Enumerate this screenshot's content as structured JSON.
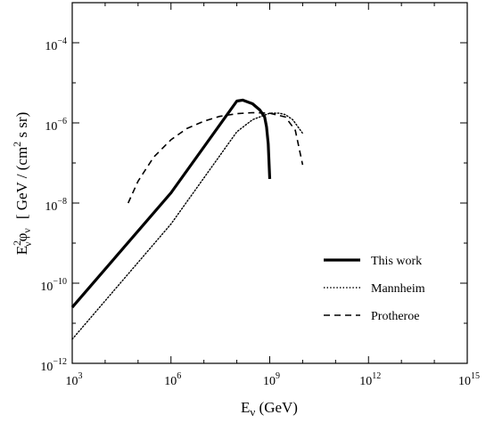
{
  "chart_data": {
    "type": "line",
    "title": "",
    "xlabel": "E_ν (GeV)",
    "ylabel": "E_ν² φ_ν [ GeV / (cm² s sr)",
    "x_scale": "log10",
    "y_scale": "log10",
    "xlim": [
      1000,
      1000000000000000
    ],
    "ylim": [
      1e-12,
      0.001
    ],
    "x_ticks": [
      {
        "value": 1000,
        "base": "10",
        "exp": "3"
      },
      {
        "value": 1000000,
        "base": "10",
        "exp": "6"
      },
      {
        "value": 1000000000,
        "base": "10",
        "exp": "9"
      },
      {
        "value": 1000000000000,
        "base": "10",
        "exp": "12"
      },
      {
        "value": 1000000000000000,
        "base": "10",
        "exp": "15"
      }
    ],
    "y_ticks": [
      {
        "value": 1e-12,
        "base": "10",
        "exp": "−12"
      },
      {
        "value": 1e-10,
        "base": "10",
        "exp": "−10"
      },
      {
        "value": 1e-08,
        "base": "10",
        "exp": "−8"
      },
      {
        "value": 1e-06,
        "base": "10",
        "exp": "−6"
      },
      {
        "value": 0.0001,
        "base": "10",
        "exp": "−4"
      }
    ],
    "grid": false,
    "legend_position": "bottom-right",
    "series": [
      {
        "name": "This work",
        "style": "solid",
        "width": 3.2,
        "x": [
          1000,
          1000000,
          100000000,
          150000000,
          300000000,
          500000000,
          700000000,
          800000000,
          900000000,
          1000000000
        ],
        "y": [
          2.5e-11,
          1.8e-08,
          3.5e-06,
          3.7e-06,
          3e-06,
          2.1e-06,
          1.4e-06,
          8e-07,
          3e-07,
          4e-08
        ]
      },
      {
        "name": "Mannheim",
        "style": "dotted",
        "width": 1.4,
        "x": [
          1000,
          1000000,
          100000000,
          300000000,
          1000000000,
          2000000000,
          3000000000,
          5000000000,
          10000000000
        ],
        "y": [
          4e-12,
          3e-09,
          6e-07,
          1.2e-06,
          1.75e-06,
          1.75e-06,
          1.6e-06,
          1.2e-06,
          5.5e-07
        ]
      },
      {
        "name": "Protheroe",
        "style": "dashed",
        "width": 1.6,
        "x": [
          50000,
          100000,
          300000,
          1000000,
          3000000,
          10000000,
          30000000,
          100000000,
          300000000,
          1000000000,
          3000000000,
          6000000000,
          10000000000
        ],
        "y": [
          1e-08,
          3.5e-08,
          1.4e-07,
          3.8e-07,
          7.2e-07,
          1.1e-06,
          1.45e-06,
          1.7e-06,
          1.8e-06,
          1.75e-06,
          1.4e-06,
          6.5e-07,
          9e-08
        ]
      }
    ]
  }
}
